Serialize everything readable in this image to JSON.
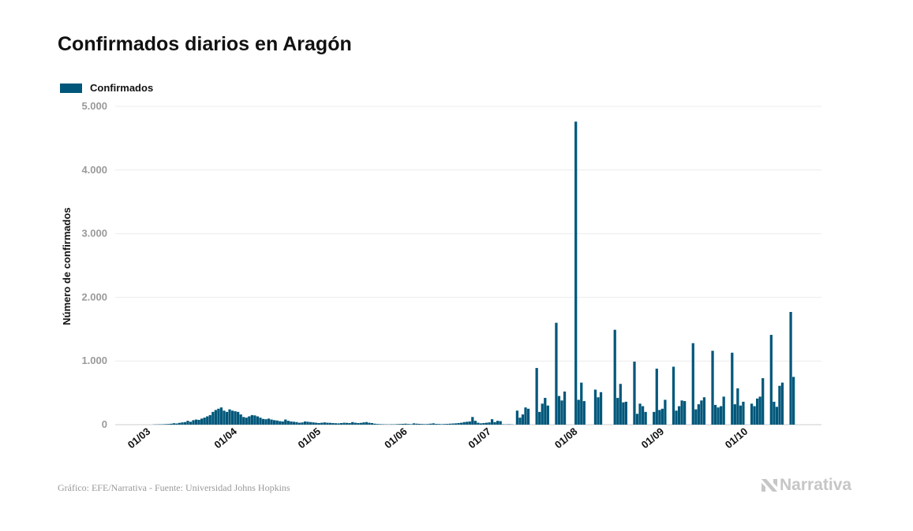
{
  "chart_data": {
    "type": "bar",
    "title": "Confirmados diarios en Aragón",
    "ylabel": "Número de confirmados",
    "xlabel": "",
    "ylim": [
      0,
      5000
    ],
    "yticks": [
      0,
      1000,
      2000,
      3000,
      4000,
      5000
    ],
    "ytick_labels": [
      "0",
      "1.000",
      "2.000",
      "3.000",
      "4.000",
      "5.000"
    ],
    "xtick_labels": [
      "01/03",
      "01/04",
      "01/05",
      "01/06",
      "01/07",
      "01/08",
      "01/09",
      "01/10"
    ],
    "xtick_dates": [
      "2020-03-01",
      "2020-04-01",
      "2020-05-01",
      "2020-06-01",
      "2020-07-01",
      "2020-08-01",
      "2020-09-01",
      "2020-10-01"
    ],
    "grid": true,
    "legend": "top-left",
    "color": "#00577a",
    "series": [
      {
        "name": "Confirmados",
        "points": [
          [
            "2020-03-05",
            3
          ],
          [
            "2020-03-06",
            4
          ],
          [
            "2020-03-07",
            5
          ],
          [
            "2020-03-08",
            6
          ],
          [
            "2020-03-09",
            8
          ],
          [
            "2020-03-10",
            10
          ],
          [
            "2020-03-11",
            14
          ],
          [
            "2020-03-12",
            22
          ],
          [
            "2020-03-13",
            18
          ],
          [
            "2020-03-14",
            28
          ],
          [
            "2020-03-15",
            35
          ],
          [
            "2020-03-16",
            40
          ],
          [
            "2020-03-17",
            60
          ],
          [
            "2020-03-18",
            45
          ],
          [
            "2020-03-19",
            70
          ],
          [
            "2020-03-20",
            80
          ],
          [
            "2020-03-21",
            75
          ],
          [
            "2020-03-22",
            95
          ],
          [
            "2020-03-23",
            110
          ],
          [
            "2020-03-24",
            130
          ],
          [
            "2020-03-25",
            150
          ],
          [
            "2020-03-26",
            200
          ],
          [
            "2020-03-27",
            230
          ],
          [
            "2020-03-28",
            250
          ],
          [
            "2020-03-29",
            270
          ],
          [
            "2020-03-30",
            220
          ],
          [
            "2020-03-31",
            200
          ],
          [
            "2020-04-01",
            240
          ],
          [
            "2020-04-02",
            220
          ],
          [
            "2020-04-03",
            210
          ],
          [
            "2020-04-04",
            200
          ],
          [
            "2020-04-05",
            160
          ],
          [
            "2020-04-06",
            120
          ],
          [
            "2020-04-07",
            110
          ],
          [
            "2020-04-08",
            130
          ],
          [
            "2020-04-09",
            150
          ],
          [
            "2020-04-10",
            145
          ],
          [
            "2020-04-11",
            130
          ],
          [
            "2020-04-12",
            110
          ],
          [
            "2020-04-13",
            90
          ],
          [
            "2020-04-14",
            85
          ],
          [
            "2020-04-15",
            95
          ],
          [
            "2020-04-16",
            80
          ],
          [
            "2020-04-17",
            70
          ],
          [
            "2020-04-18",
            65
          ],
          [
            "2020-04-19",
            55
          ],
          [
            "2020-04-20",
            50
          ],
          [
            "2020-04-21",
            80
          ],
          [
            "2020-04-22",
            60
          ],
          [
            "2020-04-23",
            50
          ],
          [
            "2020-04-24",
            45
          ],
          [
            "2020-04-25",
            40
          ],
          [
            "2020-04-26",
            30
          ],
          [
            "2020-04-27",
            35
          ],
          [
            "2020-04-28",
            50
          ],
          [
            "2020-04-29",
            45
          ],
          [
            "2020-04-30",
            40
          ],
          [
            "2020-05-01",
            35
          ],
          [
            "2020-05-02",
            30
          ],
          [
            "2020-05-03",
            25
          ],
          [
            "2020-05-04",
            30
          ],
          [
            "2020-05-05",
            35
          ],
          [
            "2020-05-06",
            30
          ],
          [
            "2020-05-07",
            28
          ],
          [
            "2020-05-08",
            25
          ],
          [
            "2020-05-09",
            22
          ],
          [
            "2020-05-10",
            20
          ],
          [
            "2020-05-11",
            25
          ],
          [
            "2020-05-12",
            30
          ],
          [
            "2020-05-13",
            28
          ],
          [
            "2020-05-14",
            25
          ],
          [
            "2020-05-15",
            40
          ],
          [
            "2020-05-16",
            30
          ],
          [
            "2020-05-17",
            25
          ],
          [
            "2020-05-18",
            28
          ],
          [
            "2020-05-19",
            35
          ],
          [
            "2020-05-20",
            40
          ],
          [
            "2020-05-21",
            30
          ],
          [
            "2020-05-22",
            25
          ],
          [
            "2020-05-23",
            15
          ],
          [
            "2020-05-24",
            10
          ],
          [
            "2020-05-25",
            8
          ],
          [
            "2020-05-26",
            6
          ],
          [
            "2020-05-27",
            5
          ],
          [
            "2020-05-28",
            4
          ],
          [
            "2020-05-29",
            6
          ],
          [
            "2020-05-30",
            5
          ],
          [
            "2020-05-31",
            8
          ],
          [
            "2020-06-01",
            10
          ],
          [
            "2020-06-02",
            12
          ],
          [
            "2020-06-03",
            15
          ],
          [
            "2020-06-04",
            10
          ],
          [
            "2020-06-05",
            8
          ],
          [
            "2020-06-06",
            20
          ],
          [
            "2020-06-07",
            15
          ],
          [
            "2020-06-08",
            12
          ],
          [
            "2020-06-09",
            10
          ],
          [
            "2020-06-10",
            8
          ],
          [
            "2020-06-11",
            10
          ],
          [
            "2020-06-12",
            15
          ],
          [
            "2020-06-13",
            20
          ],
          [
            "2020-06-14",
            12
          ],
          [
            "2020-06-15",
            10
          ],
          [
            "2020-06-16",
            8
          ],
          [
            "2020-06-17",
            10
          ],
          [
            "2020-06-18",
            12
          ],
          [
            "2020-06-19",
            15
          ],
          [
            "2020-06-20",
            18
          ],
          [
            "2020-06-21",
            20
          ],
          [
            "2020-06-22",
            25
          ],
          [
            "2020-06-23",
            30
          ],
          [
            "2020-06-24",
            40
          ],
          [
            "2020-06-25",
            45
          ],
          [
            "2020-06-26",
            50
          ],
          [
            "2020-06-27",
            120
          ],
          [
            "2020-06-28",
            60
          ],
          [
            "2020-06-29",
            30
          ],
          [
            "2020-06-30",
            20
          ],
          [
            "2020-07-01",
            25
          ],
          [
            "2020-07-02",
            30
          ],
          [
            "2020-07-03",
            35
          ],
          [
            "2020-07-04",
            85
          ],
          [
            "2020-07-05",
            40
          ],
          [
            "2020-07-06",
            60
          ],
          [
            "2020-07-07",
            55
          ],
          [
            "2020-07-08",
            5
          ],
          [
            "2020-07-09",
            4
          ],
          [
            "2020-07-10",
            6
          ],
          [
            "2020-07-11",
            4
          ],
          [
            "2020-07-13",
            220
          ],
          [
            "2020-07-14",
            110
          ],
          [
            "2020-07-15",
            160
          ],
          [
            "2020-07-16",
            270
          ],
          [
            "2020-07-17",
            250
          ],
          [
            "2020-07-20",
            890
          ],
          [
            "2020-07-21",
            200
          ],
          [
            "2020-07-22",
            330
          ],
          [
            "2020-07-23",
            420
          ],
          [
            "2020-07-24",
            300
          ],
          [
            "2020-07-27",
            1600
          ],
          [
            "2020-07-28",
            450
          ],
          [
            "2020-07-29",
            380
          ],
          [
            "2020-07-30",
            520
          ],
          [
            "2020-08-03",
            4760
          ],
          [
            "2020-08-04",
            390
          ],
          [
            "2020-08-05",
            660
          ],
          [
            "2020-08-06",
            370
          ],
          [
            "2020-08-10",
            550
          ],
          [
            "2020-08-11",
            430
          ],
          [
            "2020-08-12",
            510
          ],
          [
            "2020-08-17",
            1490
          ],
          [
            "2020-08-18",
            420
          ],
          [
            "2020-08-19",
            640
          ],
          [
            "2020-08-20",
            350
          ],
          [
            "2020-08-21",
            360
          ],
          [
            "2020-08-24",
            990
          ],
          [
            "2020-08-25",
            170
          ],
          [
            "2020-08-26",
            330
          ],
          [
            "2020-08-27",
            290
          ],
          [
            "2020-08-28",
            200
          ],
          [
            "2020-08-31",
            200
          ],
          [
            "2020-09-01",
            880
          ],
          [
            "2020-09-02",
            230
          ],
          [
            "2020-09-03",
            250
          ],
          [
            "2020-09-04",
            390
          ],
          [
            "2020-09-07",
            910
          ],
          [
            "2020-09-08",
            220
          ],
          [
            "2020-09-09",
            290
          ],
          [
            "2020-09-10",
            380
          ],
          [
            "2020-09-11",
            370
          ],
          [
            "2020-09-14",
            1280
          ],
          [
            "2020-09-15",
            240
          ],
          [
            "2020-09-16",
            320
          ],
          [
            "2020-09-17",
            380
          ],
          [
            "2020-09-18",
            430
          ],
          [
            "2020-09-21",
            1160
          ],
          [
            "2020-09-22",
            310
          ],
          [
            "2020-09-23",
            270
          ],
          [
            "2020-09-24",
            290
          ],
          [
            "2020-09-25",
            440
          ],
          [
            "2020-09-28",
            1130
          ],
          [
            "2020-09-29",
            320
          ],
          [
            "2020-09-30",
            570
          ],
          [
            "2020-10-01",
            300
          ],
          [
            "2020-10-02",
            360
          ],
          [
            "2020-10-05",
            330
          ],
          [
            "2020-10-06",
            290
          ],
          [
            "2020-10-07",
            410
          ],
          [
            "2020-10-08",
            440
          ],
          [
            "2020-10-09",
            730
          ],
          [
            "2020-10-12",
            1410
          ],
          [
            "2020-10-13",
            360
          ],
          [
            "2020-10-14",
            280
          ],
          [
            "2020-10-15",
            610
          ],
          [
            "2020-10-16",
            660
          ],
          [
            "2020-10-19",
            1770
          ],
          [
            "2020-10-20",
            750
          ]
        ]
      }
    ]
  },
  "footer": {
    "source": "Gráfico: EFE/Narrativa - Fuente: Universidad Johns Hopkins",
    "brand": "Narrativa"
  }
}
